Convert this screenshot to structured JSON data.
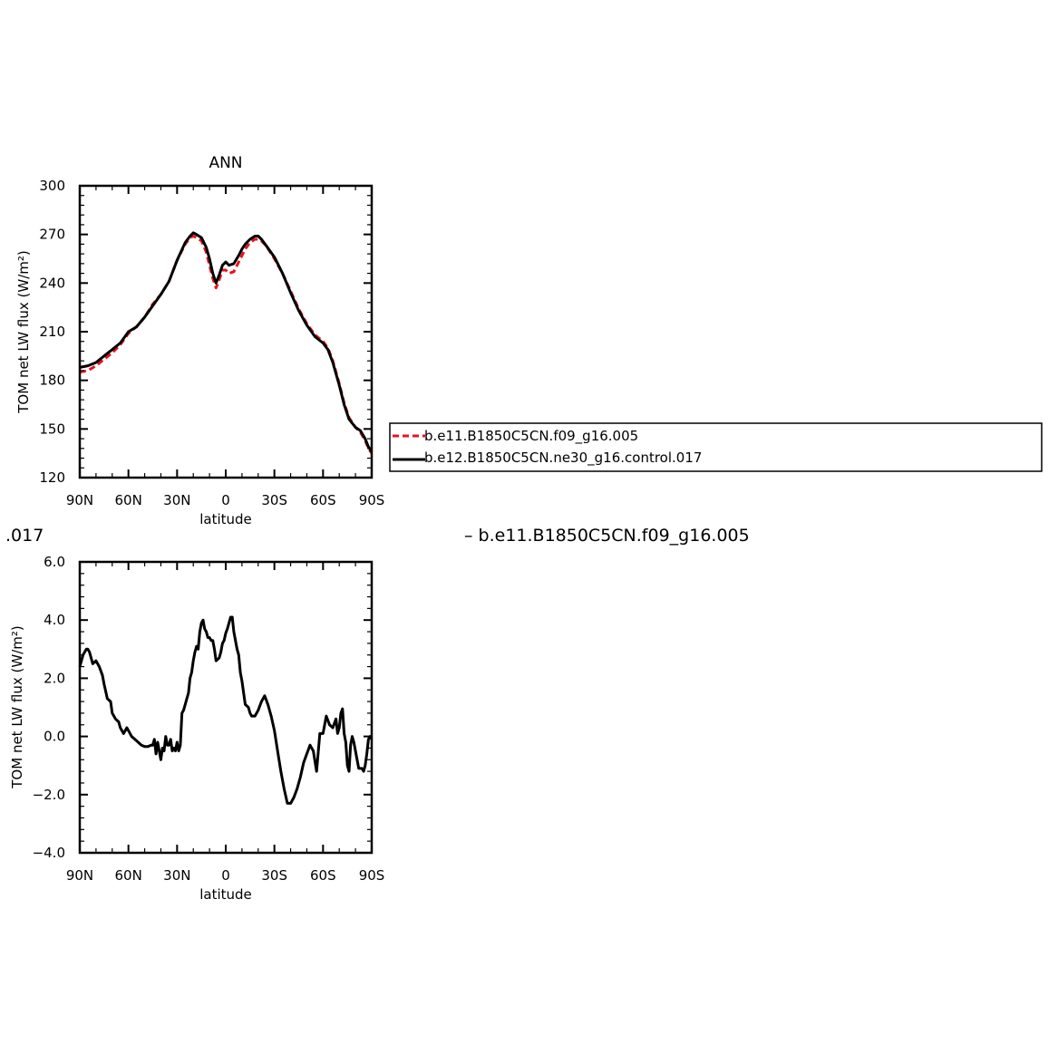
{
  "colors": {
    "red_series": "#e8121d",
    "black_series": "#000000",
    "axes": "#000000"
  },
  "stray_text": {
    "left": ".017",
    "right": "– b.e11.B1850C5CN.f09_g16.005"
  },
  "chart_data": [
    {
      "type": "line",
      "title": "ANN",
      "xlabel": "latitude",
      "ylabel": "TOM net LW flux (W/m²)",
      "xlim": [
        90,
        -90
      ],
      "ylim": [
        120,
        300
      ],
      "xticks": [
        90,
        60,
        30,
        0,
        -30,
        -60,
        -90
      ],
      "xtick_labels": [
        "90N",
        "60N",
        "30N",
        "0",
        "30S",
        "60S",
        "90S"
      ],
      "yticks": [
        120,
        150,
        180,
        210,
        240,
        270,
        300
      ],
      "ytick_labels": [
        "120",
        "150",
        "180",
        "210",
        "240",
        "270",
        "300"
      ],
      "grid": false,
      "legend": "outside-right",
      "series": [
        {
          "name": "b.e11.B1850C5CN.f09_g16.005",
          "style": "dashed",
          "color": "#e8121d",
          "x": [
            90,
            85,
            80,
            75,
            70,
            65,
            60,
            55,
            50,
            45,
            40,
            35,
            30,
            25,
            22,
            20,
            18,
            15,
            12,
            10,
            8,
            6,
            4,
            2,
            0,
            -2,
            -5,
            -8,
            -10,
            -12,
            -15,
            -18,
            -20,
            -22,
            -25,
            -30,
            -35,
            -40,
            -45,
            -50,
            -55,
            -60,
            -63,
            -66,
            -70,
            -73,
            -76,
            -80,
            -83,
            -86,
            -88,
            -90
          ],
          "y": [
            185,
            186,
            189,
            193,
            197,
            202,
            209,
            213,
            219,
            227,
            233,
            241,
            254,
            264,
            268,
            269,
            268,
            266,
            259,
            251,
            243,
            237,
            242,
            248,
            248,
            246,
            247,
            253,
            257,
            261,
            265,
            267,
            267,
            266,
            263,
            255,
            246,
            235,
            224,
            215,
            208,
            204,
            200,
            192,
            178,
            166,
            157,
            151,
            148,
            143,
            138,
            135
          ]
        },
        {
          "name": "b.e12.B1850C5CN.ne30_g16.control.017",
          "style": "solid",
          "color": "#000000",
          "x": [
            90,
            85,
            80,
            75,
            70,
            65,
            60,
            55,
            50,
            45,
            40,
            35,
            30,
            25,
            22,
            20,
            18,
            15,
            12,
            10,
            8,
            6,
            4,
            2,
            0,
            -2,
            -5,
            -8,
            -10,
            -12,
            -15,
            -18,
            -20,
            -22,
            -25,
            -30,
            -35,
            -40,
            -45,
            -50,
            -55,
            -60,
            -63,
            -66,
            -70,
            -73,
            -76,
            -80,
            -83,
            -86,
            -88,
            -90
          ],
          "y": [
            188,
            189,
            191,
            195,
            199,
            203,
            210,
            213,
            219,
            226,
            233,
            241,
            254,
            265,
            269,
            271,
            270,
            268,
            262,
            255,
            246,
            240,
            245,
            251,
            253,
            251,
            252,
            257,
            261,
            264,
            267,
            269,
            269,
            267,
            263,
            256,
            246,
            234,
            223,
            214,
            207,
            203,
            199,
            191,
            177,
            165,
            156,
            151,
            149,
            144,
            139,
            136
          ]
        }
      ]
    },
    {
      "type": "line",
      "title": "",
      "xlabel": "latitude",
      "ylabel": "TOM net LW flux (W/m²)",
      "xlim": [
        90,
        -90
      ],
      "ylim": [
        -4.0,
        6.0
      ],
      "xticks": [
        90,
        60,
        30,
        0,
        -30,
        -60,
        -90
      ],
      "xtick_labels": [
        "90N",
        "60N",
        "30N",
        "0",
        "30S",
        "60S",
        "90S"
      ],
      "yticks": [
        -4.0,
        -2.0,
        0.0,
        2.0,
        4.0,
        6.0
      ],
      "ytick_labels": [
        "−4.0",
        "−2.0",
        "0.0",
        "2.0",
        "4.0",
        "6.0"
      ],
      "grid": false,
      "series": [
        {
          "style": "solid",
          "color": "#000000",
          "x": [
            90,
            88,
            86,
            85,
            84,
            82,
            80,
            78,
            76,
            75,
            73,
            71,
            70,
            68,
            66,
            65,
            63,
            61,
            60,
            58,
            56,
            54,
            52,
            50,
            48,
            46,
            45,
            44,
            43,
            42,
            41,
            40,
            39,
            38,
            37,
            36,
            35,
            34,
            33,
            32,
            31,
            30,
            29,
            28,
            27,
            26,
            25,
            24,
            23,
            22,
            21,
            20,
            19,
            18,
            17,
            16,
            15,
            14,
            13,
            12,
            11,
            10,
            9,
            8,
            7,
            6,
            5,
            4,
            3,
            2,
            1,
            0,
            -1,
            -2,
            -3,
            -4,
            -5,
            -6,
            -7,
            -8,
            -9,
            -10,
            -12,
            -14,
            -15,
            -16,
            -18,
            -20,
            -22,
            -24,
            -26,
            -28,
            -30,
            -32,
            -34,
            -36,
            -38,
            -40,
            -42,
            -44,
            -46,
            -48,
            -50,
            -52,
            -54,
            -56,
            -58,
            -60,
            -62,
            -64,
            -66,
            -68,
            -69,
            -70,
            -71,
            -72,
            -73,
            -74,
            -75,
            -76,
            -77,
            -78,
            -79,
            -80,
            -81,
            -82,
            -83,
            -84,
            -85,
            -86,
            -87,
            -88,
            -89,
            -90
          ],
          "y": [
            2.4,
            2.8,
            3.0,
            3.0,
            2.9,
            2.5,
            2.6,
            2.4,
            2.1,
            1.8,
            1.3,
            1.2,
            0.8,
            0.6,
            0.5,
            0.3,
            0.1,
            0.3,
            0.2,
            0.0,
            -0.1,
            -0.2,
            -0.3,
            -0.35,
            -0.35,
            -0.3,
            -0.3,
            -0.1,
            -0.6,
            -0.2,
            -0.5,
            -0.8,
            -0.4,
            -0.5,
            0.0,
            -0.3,
            -0.3,
            -0.1,
            -0.5,
            -0.4,
            -0.5,
            -0.2,
            -0.5,
            -0.3,
            0.8,
            0.9,
            1.1,
            1.3,
            1.5,
            2.0,
            2.2,
            2.6,
            2.9,
            3.1,
            3.0,
            3.6,
            3.9,
            4.0,
            3.7,
            3.6,
            3.4,
            3.4,
            3.3,
            3.3,
            3.0,
            2.6,
            2.65,
            2.7,
            2.9,
            3.2,
            3.3,
            3.55,
            3.7,
            3.9,
            4.1,
            4.1,
            3.6,
            3.3,
            3.0,
            2.8,
            2.2,
            1.9,
            1.1,
            1.0,
            0.8,
            0.7,
            0.7,
            0.9,
            1.2,
            1.4,
            1.1,
            0.7,
            0.2,
            -0.5,
            -1.2,
            -1.8,
            -2.3,
            -2.3,
            -2.1,
            -1.8,
            -1.4,
            -0.9,
            -0.6,
            -0.3,
            -0.5,
            -1.2,
            0.1,
            0.1,
            0.7,
            0.4,
            0.3,
            0.6,
            0.1,
            0.3,
            0.8,
            0.95,
            0.1,
            -0.2,
            -1.0,
            -1.2,
            -0.3,
            -0.0,
            -0.2,
            -0.5,
            -0.8,
            -1.1,
            -1.1,
            -1.1,
            -1.2,
            -1.0,
            -0.6,
            -0.1,
            0.0,
            -0.1
          ]
        }
      ]
    }
  ]
}
